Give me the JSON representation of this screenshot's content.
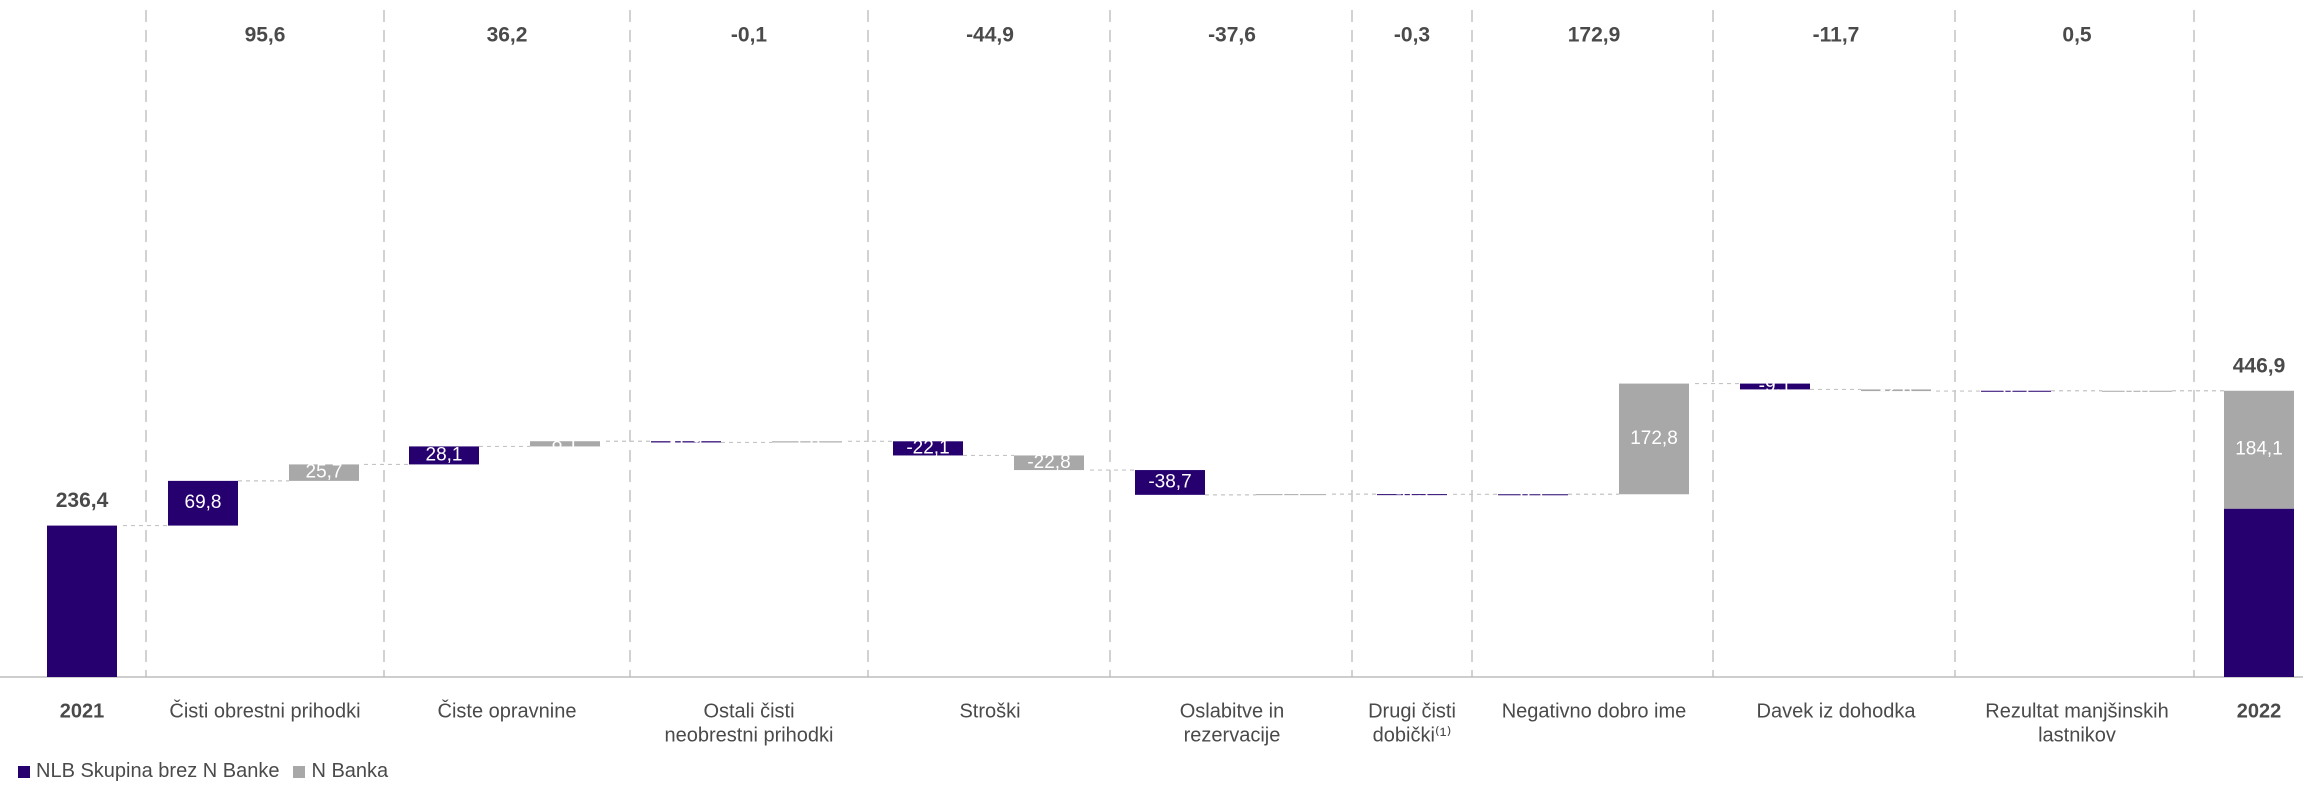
{
  "chart_data": {
    "type": "bar",
    "subtype": "waterfall",
    "title": "",
    "xlabel": "",
    "ylabel": "",
    "ylim": [
      0,
      500
    ],
    "grid": false,
    "legend_position": "bottom-left",
    "colors": {
      "nlb": "#26006e",
      "nbanka": "#a8a8a8",
      "text": "#4a4a4a",
      "divider": "#c4c4c4"
    },
    "series": [
      {
        "key": "nlb",
        "name": "NLB Skupina brez N Banke"
      },
      {
        "key": "nbanka",
        "name": "N Banka"
      }
    ],
    "start": {
      "label": "2021",
      "value": 236.4,
      "label_text": "236,4"
    },
    "end": {
      "label": "2022",
      "total": 446.9,
      "total_text": "446,9",
      "nlb_value": 262.8,
      "nbanka_value": 184.1,
      "nbanka_text": "184,1"
    },
    "steps": [
      {
        "category": [
          "Čisti obrestni prihodki"
        ],
        "total_text": "95,6",
        "nlb": 69.8,
        "nlb_text": "69,8",
        "nbanka": 25.7,
        "nbanka_text": "25,7"
      },
      {
        "category": [
          "Čiste opravnine"
        ],
        "total_text": "36,2",
        "nlb": 28.1,
        "nlb_text": "28,1",
        "nbanka": 8.1,
        "nbanka_text": "8,1"
      },
      {
        "category": [
          "Ostali čisti",
          "neobrestni prihodki"
        ],
        "total_text": "-0,1",
        "nlb": -1.9,
        "nlb_text": "-1,9",
        "nbanka": 1.8,
        "nbanka_text": "1,8"
      },
      {
        "category": [
          "Stroški"
        ],
        "total_text": "-44,9",
        "nlb": -22.1,
        "nlb_text": "-22,1",
        "nbanka": -22.8,
        "nbanka_text": "-22,8"
      },
      {
        "category": [
          "Oslabitve in",
          "rezervacije"
        ],
        "total_text": "-37,6",
        "nlb": -38.7,
        "nlb_text": "-38,7",
        "nbanka": 1.1,
        "nbanka_text": "1,1"
      },
      {
        "category": [
          "Drugi čisti",
          "dobički⁽¹⁾"
        ],
        "total_text": "-0,3",
        "nlb": -0.3,
        "nlb_text": "-0,3",
        "nbanka": null,
        "nbanka_text": ""
      },
      {
        "category": [
          "Negativno dobro ime"
        ],
        "total_text": "172,9",
        "nlb": 0.1,
        "nlb_text": "0,1",
        "nbanka": 172.8,
        "nbanka_text": "172,8"
      },
      {
        "category": [
          "Davek iz dohodka"
        ],
        "total_text": "-11,7",
        "nlb": -9.1,
        "nlb_text": "-9,1",
        "nbanka": -2.6,
        "nbanka_text": "-2,6"
      },
      {
        "category": [
          "Rezultat manjšinskih",
          "lastnikov"
        ],
        "total_text": "0,5",
        "nlb": 0.5,
        "nlb_text": "0,5",
        "nbanka": 0.0,
        "nbanka_text": "0,0"
      }
    ]
  }
}
